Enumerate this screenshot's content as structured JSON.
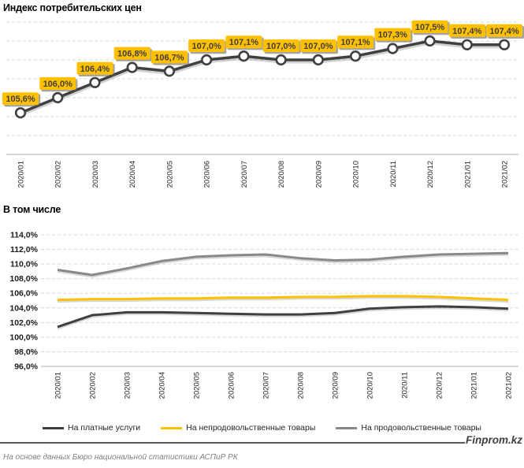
{
  "footer": {
    "source": "На основе данных Бюро национальной статистики АСПиР РК",
    "brand": "Finprom.kz"
  },
  "colors": {
    "accent_yellow": "#FFC000",
    "dark_line": "#404040",
    "gray_line": "#898989",
    "grid": "#D9D9D9",
    "axis": "#BFBFBF",
    "badge_text": "#3F3F3F",
    "tick_text": "#262626"
  },
  "chart_data": [
    {
      "type": "line",
      "title": "Индекс потребительских цен",
      "categories": [
        "2020/01",
        "2020/02",
        "2020/03",
        "2020/04",
        "2020/05",
        "2020/06",
        "2020/07",
        "2020/08",
        "2020/09",
        "2020/10",
        "2020/11",
        "2020/12",
        "2021/01",
        "2021/02"
      ],
      "series": [
        {
          "name": "Индекс потребительских цен",
          "color": "#404040",
          "values": [
            105.6,
            106.0,
            106.4,
            106.8,
            106.7,
            107.0,
            107.1,
            107.0,
            107.0,
            107.1,
            107.3,
            107.5,
            107.4,
            107.4
          ],
          "data_labels": [
            "105,6%",
            "106,0%",
            "106,4%",
            "106,8%",
            "106,7%",
            "107,0%",
            "107,1%",
            "107,0%",
            "107,0%",
            "107,1%",
            "107,3%",
            "107,5%",
            "107,4%",
            "107,4%"
          ]
        }
      ],
      "ylim": [
        104.5,
        108.0
      ],
      "grid_step": 0.5,
      "grid": true,
      "markers": true,
      "data_label_bg": "#FFC000",
      "legend_position": "none",
      "y_axis_labels": false
    },
    {
      "type": "line",
      "title": "В том числе",
      "categories": [
        "2020/01",
        "2020/02",
        "2020/03",
        "2020/04",
        "2020/05",
        "2020/06",
        "2020/07",
        "2020/08",
        "2020/09",
        "2020/10",
        "2020/11",
        "2020/12",
        "2021/01",
        "2021/02"
      ],
      "series": [
        {
          "name": "На платные услуги",
          "color": "#404040",
          "values": [
            101.4,
            103.0,
            103.4,
            103.4,
            103.3,
            103.2,
            103.1,
            103.1,
            103.3,
            103.9,
            104.1,
            104.2,
            104.1,
            103.9
          ]
        },
        {
          "name": "На непродовольственные товары",
          "color": "#FFC000",
          "values": [
            105.1,
            105.2,
            105.2,
            105.3,
            105.3,
            105.4,
            105.4,
            105.5,
            105.5,
            105.6,
            105.6,
            105.5,
            105.3,
            105.1
          ]
        },
        {
          "name": "На продовольственные товары",
          "color": "#898989",
          "values": [
            109.2,
            108.5,
            109.4,
            110.4,
            111.0,
            111.2,
            111.3,
            110.8,
            110.5,
            110.6,
            111.0,
            111.3,
            111.4,
            111.5
          ]
        }
      ],
      "ylim": [
        96,
        114
      ],
      "ytick_step": 2,
      "ytick_labels": [
        "114,0%",
        "112,0%",
        "110,0%",
        "108,0%",
        "106,0%",
        "104,0%",
        "102,0%",
        "100,0%",
        "98,0%",
        "96,0%"
      ],
      "grid": true,
      "markers": false,
      "legend_position": "bottom"
    }
  ]
}
